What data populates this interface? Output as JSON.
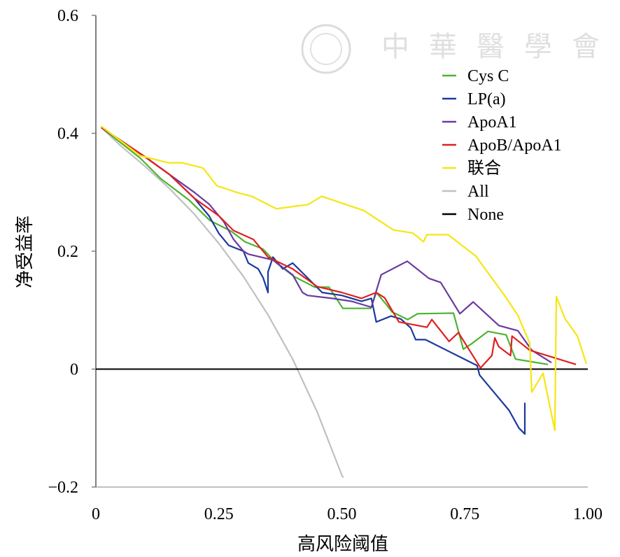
{
  "chart_data": {
    "type": "line",
    "title": "",
    "xlabel": "高风险阈值",
    "ylabel": "净受益率",
    "xlim": [
      0,
      1
    ],
    "ylim": [
      -0.2,
      0.6
    ],
    "xticks": [
      {
        "v": 0,
        "label": "0"
      },
      {
        "v": 0.25,
        "label": "0.25"
      },
      {
        "v": 0.5,
        "label": "0.50"
      },
      {
        "v": 0.75,
        "label": "0.75"
      },
      {
        "v": 1,
        "label": "1.00"
      }
    ],
    "yticks": [
      {
        "v": 0.6,
        "label": "0.6"
      },
      {
        "v": 0.4,
        "label": "0.4"
      },
      {
        "v": 0.2,
        "label": "0.2"
      },
      {
        "v": 0,
        "label": "0"
      },
      {
        "v": -0.2,
        "label": "−0.2"
      }
    ],
    "grid": false,
    "legend_position": "top-right",
    "watermark": "中華醫學會",
    "series": [
      {
        "name": "Cys C",
        "color": "#4db330",
        "points": [
          [
            0.011,
            0.41
          ],
          [
            0.09,
            0.358
          ],
          [
            0.132,
            0.323
          ],
          [
            0.189,
            0.287
          ],
          [
            0.232,
            0.252
          ],
          [
            0.275,
            0.234
          ],
          [
            0.303,
            0.216
          ],
          [
            0.339,
            0.204
          ],
          [
            0.367,
            0.18
          ],
          [
            0.403,
            0.157
          ],
          [
            0.445,
            0.139
          ],
          [
            0.474,
            0.139
          ],
          [
            0.502,
            0.103
          ],
          [
            0.559,
            0.103
          ],
          [
            0.57,
            0.13
          ],
          [
            0.59,
            0.11
          ],
          [
            0.602,
            0.097
          ],
          [
            0.634,
            0.084
          ],
          [
            0.654,
            0.094
          ],
          [
            0.727,
            0.095
          ],
          [
            0.747,
            0.034
          ],
          [
            0.762,
            0.042
          ],
          [
            0.797,
            0.064
          ],
          [
            0.834,
            0.058
          ],
          [
            0.853,
            0.017
          ],
          [
            0.919,
            0.008
          ]
        ]
      },
      {
        "name": "LP(a)",
        "color": "#1a3a9c",
        "points": [
          [
            0.011,
            0.41
          ],
          [
            0.1,
            0.36
          ],
          [
            0.15,
            0.33
          ],
          [
            0.2,
            0.29
          ],
          [
            0.23,
            0.26
          ],
          [
            0.25,
            0.23
          ],
          [
            0.27,
            0.21
          ],
          [
            0.3,
            0.2
          ],
          [
            0.31,
            0.18
          ],
          [
            0.33,
            0.17
          ],
          [
            0.34,
            0.155
          ],
          [
            0.35,
            0.13
          ],
          [
            0.35,
            0.165
          ],
          [
            0.36,
            0.19
          ],
          [
            0.38,
            0.17
          ],
          [
            0.4,
            0.18
          ],
          [
            0.43,
            0.155
          ],
          [
            0.46,
            0.13
          ],
          [
            0.5,
            0.125
          ],
          [
            0.54,
            0.115
          ],
          [
            0.56,
            0.12
          ],
          [
            0.57,
            0.08
          ],
          [
            0.6,
            0.09
          ],
          [
            0.62,
            0.085
          ],
          [
            0.64,
            0.07
          ],
          [
            0.65,
            0.05
          ],
          [
            0.67,
            0.05
          ],
          [
            0.775,
            0.006
          ],
          [
            0.78,
            -0.01
          ],
          [
            0.81,
            -0.04
          ],
          [
            0.84,
            -0.07
          ],
          [
            0.86,
            -0.1
          ],
          [
            0.872,
            -0.11
          ],
          [
            0.872,
            -0.057
          ]
        ]
      },
      {
        "name": "ApoA1",
        "color": "#6a3aa0",
        "points": [
          [
            0.011,
            0.41
          ],
          [
            0.1,
            0.36
          ],
          [
            0.15,
            0.33
          ],
          [
            0.2,
            0.3
          ],
          [
            0.23,
            0.28
          ],
          [
            0.26,
            0.25
          ],
          [
            0.28,
            0.22
          ],
          [
            0.3,
            0.2
          ],
          [
            0.31,
            0.195
          ],
          [
            0.36,
            0.185
          ],
          [
            0.4,
            0.16
          ],
          [
            0.42,
            0.13
          ],
          [
            0.43,
            0.125
          ],
          [
            0.48,
            0.12
          ],
          [
            0.52,
            0.115
          ],
          [
            0.56,
            0.105
          ],
          [
            0.58,
            0.16
          ],
          [
            0.633,
            0.183
          ],
          [
            0.677,
            0.154
          ],
          [
            0.701,
            0.147
          ],
          [
            0.74,
            0.094
          ],
          [
            0.767,
            0.114
          ],
          [
            0.819,
            0.074
          ],
          [
            0.858,
            0.065
          ],
          [
            0.886,
            0.032
          ],
          [
            0.926,
            0.011
          ]
        ]
      },
      {
        "name": "ApoB/ApoA1",
        "color": "#e02020",
        "points": [
          [
            0.011,
            0.41
          ],
          [
            0.1,
            0.36
          ],
          [
            0.15,
            0.33
          ],
          [
            0.2,
            0.29
          ],
          [
            0.25,
            0.26
          ],
          [
            0.28,
            0.235
          ],
          [
            0.32,
            0.22
          ],
          [
            0.35,
            0.19
          ],
          [
            0.4,
            0.17
          ],
          [
            0.45,
            0.14
          ],
          [
            0.5,
            0.13
          ],
          [
            0.54,
            0.12
          ],
          [
            0.57,
            0.13
          ],
          [
            0.587,
            0.121
          ],
          [
            0.616,
            0.08
          ],
          [
            0.673,
            0.071
          ],
          [
            0.683,
            0.084
          ],
          [
            0.718,
            0.047
          ],
          [
            0.737,
            0.062
          ],
          [
            0.782,
            0.002
          ],
          [
            0.805,
            0.023
          ],
          [
            0.811,
            0.053
          ],
          [
            0.819,
            0.038
          ],
          [
            0.843,
            0.023
          ],
          [
            0.846,
            0.056
          ],
          [
            0.882,
            0.032
          ],
          [
            0.976,
            0.008
          ]
        ]
      },
      {
        "name": "联合",
        "color": "#f5e614",
        "points": [
          [
            0.011,
            0.412
          ],
          [
            0.09,
            0.362
          ],
          [
            0.147,
            0.35
          ],
          [
            0.175,
            0.35
          ],
          [
            0.218,
            0.341
          ],
          [
            0.246,
            0.311
          ],
          [
            0.289,
            0.299
          ],
          [
            0.317,
            0.293
          ],
          [
            0.367,
            0.272
          ],
          [
            0.431,
            0.279
          ],
          [
            0.459,
            0.293
          ],
          [
            0.545,
            0.269
          ],
          [
            0.605,
            0.236
          ],
          [
            0.644,
            0.231
          ],
          [
            0.666,
            0.216
          ],
          [
            0.673,
            0.228
          ],
          [
            0.716,
            0.228
          ],
          [
            0.772,
            0.192
          ],
          [
            0.829,
            0.127
          ],
          [
            0.858,
            0.091
          ],
          [
            0.882,
            0.044
          ],
          [
            0.886,
            -0.039
          ],
          [
            0.909,
            -0.007
          ],
          [
            0.933,
            -0.104
          ],
          [
            0.936,
            0.123
          ],
          [
            0.954,
            0.085
          ],
          [
            0.979,
            0.056
          ],
          [
            0.997,
            0.009
          ]
        ]
      },
      {
        "name": "All",
        "color": "#c0c0c0",
        "points": [
          [
            0.011,
            0.41
          ],
          [
            0.05,
            0.379
          ],
          [
            0.1,
            0.344
          ],
          [
            0.15,
            0.306
          ],
          [
            0.2,
            0.263
          ],
          [
            0.25,
            0.213
          ],
          [
            0.3,
            0.157
          ],
          [
            0.35,
            0.092
          ],
          [
            0.4,
            0.017
          ],
          [
            0.45,
            -0.073
          ],
          [
            0.5,
            -0.18
          ],
          [
            0.503,
            -0.184
          ]
        ]
      },
      {
        "name": "None",
        "color": "#000000",
        "points": [
          [
            0,
            0
          ],
          [
            1,
            0
          ]
        ]
      }
    ]
  }
}
